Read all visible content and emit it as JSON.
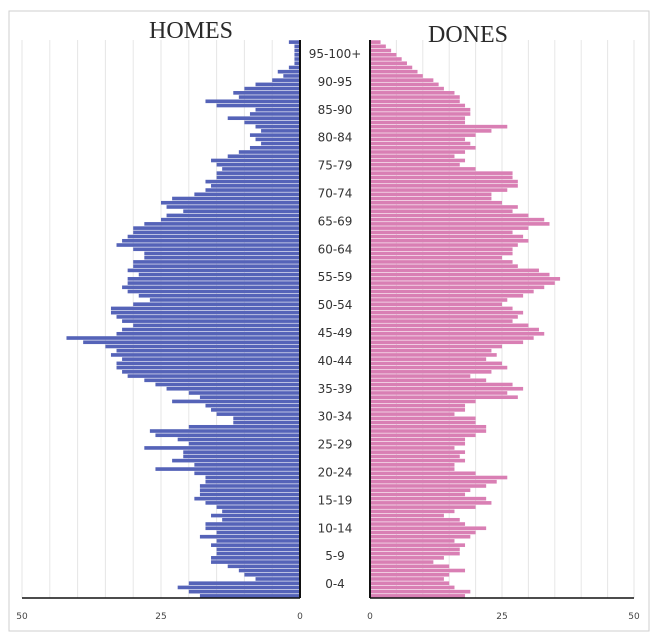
{
  "chart_data": {
    "type": "bar",
    "orientation": "horizontal-population-pyramid",
    "panels": {
      "left": {
        "title": "HOMES",
        "color": "#5563b8"
      },
      "right": {
        "title": "DONES",
        "color": "#d97fb4"
      }
    },
    "age_labels": [
      "95-100+",
      "90-95",
      "85-90",
      "80-84",
      "75-79",
      "70-74",
      "65-69",
      "60-64",
      "55-59",
      "50-54",
      "45-49",
      "40-44",
      "35-39",
      "30-34",
      "25-29",
      "20-24",
      "15-19",
      "10-14",
      "5-9",
      "0-4"
    ],
    "x_ticks_left": [
      "50",
      "25",
      "0"
    ],
    "x_ticks_right": [
      "0",
      "25",
      "50"
    ],
    "xlim": [
      0,
      50
    ],
    "grid": true,
    "series": [
      {
        "name": "HOMES",
        "values": [
          18,
          20,
          22,
          20,
          8,
          10,
          11,
          13,
          16,
          16,
          15,
          15,
          16,
          15,
          18,
          15,
          17,
          17,
          14,
          16,
          14,
          15,
          17,
          19,
          18,
          18,
          18,
          17,
          17,
          19,
          26,
          19,
          23,
          21,
          21,
          28,
          20,
          22,
          26,
          27,
          20,
          12,
          12,
          15,
          16,
          17,
          23,
          18,
          20,
          24,
          26,
          28,
          31,
          32,
          33,
          33,
          32,
          34,
          33,
          35,
          39,
          42,
          33,
          32,
          30,
          32,
          33,
          34,
          34,
          30,
          27,
          29,
          31,
          32,
          31,
          31,
          29,
          31,
          30,
          30,
          28,
          28,
          30,
          33,
          32,
          31,
          30,
          30,
          28,
          25,
          24,
          21,
          24,
          25,
          23,
          19,
          17,
          16,
          17,
          15,
          15,
          14,
          15,
          16,
          13,
          11,
          9,
          7,
          8,
          9,
          7,
          8,
          10,
          13,
          9,
          8,
          15,
          17,
          11,
          12,
          10,
          8,
          5,
          3,
          4,
          2,
          1,
          1,
          1,
          1,
          1,
          2
        ]
      },
      {
        "name": "DONES",
        "values": [
          18,
          19,
          16,
          15,
          14,
          15,
          18,
          15,
          12,
          14,
          17,
          17,
          18,
          16,
          19,
          20,
          22,
          18,
          17,
          14,
          16,
          20,
          23,
          22,
          18,
          19,
          22,
          24,
          26,
          20,
          16,
          16,
          18,
          17,
          18,
          16,
          18,
          18,
          20,
          22,
          22,
          20,
          20,
          16,
          18,
          18,
          20,
          28,
          26,
          29,
          27,
          22,
          19,
          23,
          26,
          25,
          22,
          24,
          23,
          25,
          29,
          31,
          33,
          32,
          30,
          27,
          28,
          29,
          27,
          25,
          26,
          29,
          31,
          33,
          35,
          36,
          34,
          32,
          28,
          27,
          25,
          27,
          27,
          28,
          30,
          29,
          27,
          30,
          34,
          33,
          30,
          27,
          28,
          25,
          23,
          23,
          26,
          28,
          28,
          27,
          27,
          20,
          17,
          18,
          16,
          18,
          20,
          19,
          18,
          20,
          23,
          26,
          18,
          18,
          19,
          19,
          18,
          17,
          17,
          16,
          14,
          13,
          12,
          10,
          9,
          8,
          7,
          6,
          5,
          4,
          3,
          2
        ]
      }
    ]
  }
}
